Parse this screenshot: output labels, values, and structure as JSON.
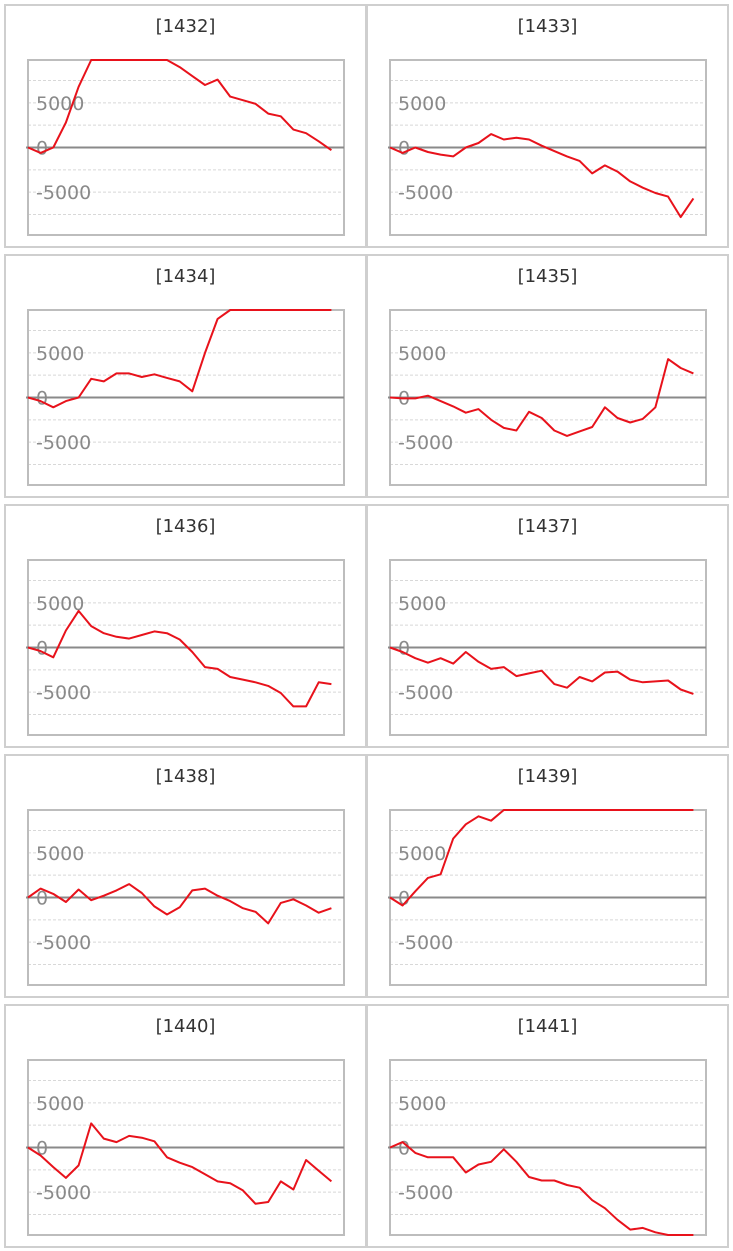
{
  "colors": {
    "line": "#e8121b",
    "zero": "#8a8a8a",
    "grid": "#d8d8d8",
    "frame": "#bdbdbd"
  },
  "y_ticks": [
    "5000",
    "0",
    "-5000"
  ],
  "chart_data": [
    {
      "type": "line",
      "title": "[1432]",
      "ylim": [
        -9800,
        9800
      ],
      "xlim": [
        0,
        25
      ],
      "y": [
        0,
        -600,
        0,
        2800,
        6800,
        9800,
        9800,
        9800,
        9800,
        9800,
        9800,
        9800,
        9000,
        8000,
        7000,
        7600,
        5700,
        5300,
        4900,
        3800,
        3500,
        2000,
        1600,
        700,
        -300
      ]
    },
    {
      "type": "line",
      "title": "[1433]",
      "ylim": [
        -9800,
        9800
      ],
      "xlim": [
        0,
        25
      ],
      "y": [
        0,
        -600,
        0,
        -500,
        -800,
        -1000,
        0,
        500,
        1500,
        900,
        1100,
        900,
        200,
        -400,
        -1000,
        -1500,
        -2900,
        -2000,
        -2700,
        -3800,
        -4500,
        -5100,
        -5500,
        -7800,
        -5700
      ]
    },
    {
      "type": "line",
      "title": "[1434]",
      "ylim": [
        -9800,
        9800
      ],
      "xlim": [
        0,
        25
      ],
      "y": [
        0,
        -400,
        -1100,
        -400,
        0,
        2100,
        1800,
        2700,
        2700,
        2300,
        2600,
        2200,
        1800,
        700,
        5000,
        8800,
        9800,
        9800,
        9800,
        9800,
        9800,
        9800,
        9800,
        9800,
        9800
      ]
    },
    {
      "type": "line",
      "title": "[1435]",
      "ylim": [
        -9800,
        9800
      ],
      "xlim": [
        0,
        25
      ],
      "y": [
        0,
        -100,
        -100,
        200,
        -400,
        -1000,
        -1700,
        -1300,
        -2500,
        -3400,
        -3700,
        -1600,
        -2300,
        -3700,
        -4300,
        -3800,
        -3300,
        -1100,
        -2300,
        -2800,
        -2400,
        -1100,
        4300,
        3300,
        2700
      ]
    },
    {
      "type": "line",
      "title": "[1436]",
      "ylim": [
        -9800,
        9800
      ],
      "xlim": [
        0,
        25
      ],
      "y": [
        0,
        -400,
        -1100,
        1900,
        4100,
        2400,
        1600,
        1200,
        1000,
        1400,
        1800,
        1600,
        900,
        -500,
        -2200,
        -2400,
        -3300,
        -3600,
        -3900,
        -4300,
        -5100,
        -6600,
        -6600,
        -3900,
        -4100
      ]
    },
    {
      "type": "line",
      "title": "[1437]",
      "ylim": [
        -9800,
        9800
      ],
      "xlim": [
        0,
        25
      ],
      "y": [
        0,
        -500,
        -1200,
        -1700,
        -1200,
        -1800,
        -500,
        -1600,
        -2400,
        -2200,
        -3200,
        -2900,
        -2600,
        -4100,
        -4500,
        -3300,
        -3800,
        -2800,
        -2700,
        -3600,
        -3900,
        -3800,
        -3700,
        -4700,
        -5200
      ]
    },
    {
      "type": "line",
      "title": "[1438]",
      "ylim": [
        -9800,
        9800
      ],
      "xlim": [
        0,
        25
      ],
      "y": [
        0,
        1000,
        400,
        -500,
        900,
        -300,
        200,
        800,
        1500,
        500,
        -1000,
        -1900,
        -1100,
        800,
        1000,
        200,
        -400,
        -1200,
        -1600,
        -2900,
        -600,
        -200,
        -900,
        -1700,
        -1200
      ]
    },
    {
      "type": "line",
      "title": "[1439]",
      "ylim": [
        -9800,
        9800
      ],
      "xlim": [
        0,
        25
      ],
      "y": [
        0,
        -900,
        700,
        2200,
        2600,
        6600,
        8200,
        9100,
        8600,
        9800,
        9800,
        9800,
        9800,
        9800,
        9800,
        9800,
        9800,
        9800,
        9800,
        9800,
        9800,
        9800,
        9800,
        9800,
        9800
      ]
    },
    {
      "type": "line",
      "title": "[1440]",
      "ylim": [
        -9800,
        9800
      ],
      "xlim": [
        0,
        25
      ],
      "y": [
        0,
        -900,
        -2200,
        -3400,
        -2000,
        2700,
        1000,
        600,
        1300,
        1100,
        700,
        -1100,
        -1700,
        -2200,
        -3000,
        -3800,
        -4000,
        -4800,
        -6300,
        -6100,
        -3800,
        -4700,
        -1400,
        -2600,
        -3800
      ]
    },
    {
      "type": "line",
      "title": "[1441]",
      "ylim": [
        -9800,
        9800
      ],
      "xlim": [
        0,
        25
      ],
      "y": [
        0,
        600,
        -600,
        -1100,
        -1100,
        -1100,
        -2800,
        -1900,
        -1600,
        -200,
        -1600,
        -3300,
        -3700,
        -3700,
        -4200,
        -4500,
        -5900,
        -6800,
        -8100,
        -9200,
        -9000,
        -9500,
        -9800,
        -9800,
        -9800
      ]
    }
  ]
}
